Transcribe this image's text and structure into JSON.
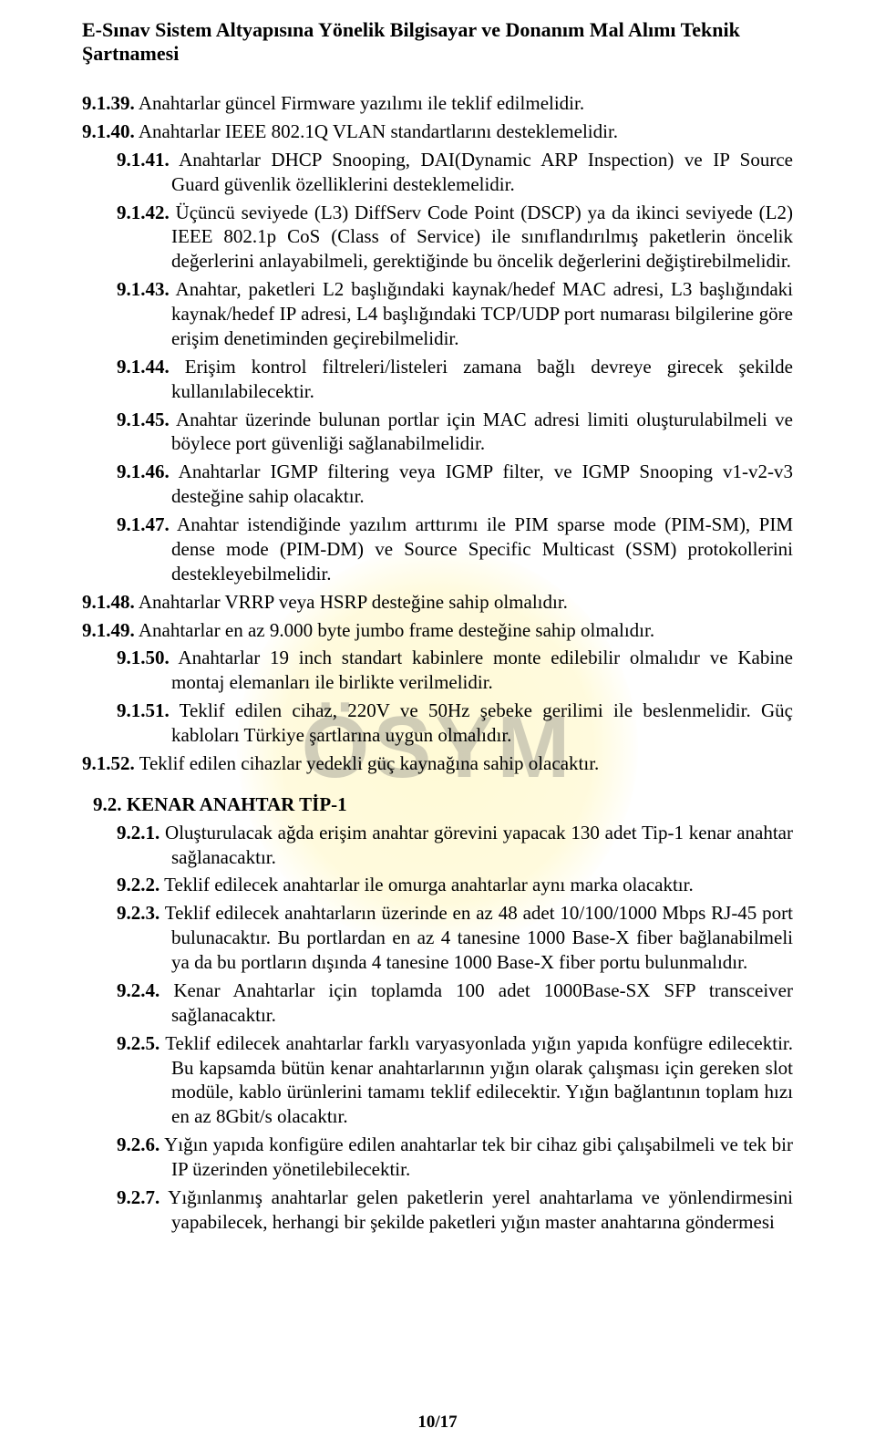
{
  "header": "E-Sınav Sistem Altyapısına Yönelik Bilgisayar ve Donanım Mal Alımı Teknik Şartnamesi",
  "watermark": "ÖSYM",
  "items": [
    {
      "num": "9.1.39.",
      "text": "Anahtarlar güncel Firmware yazılımı ile teklif edilmelidir.",
      "cls": "indent1 hang1"
    },
    {
      "num": "9.1.40.",
      "text": "Anahtarlar IEEE 802.1Q VLAN standartlarını desteklemelidir.",
      "cls": "indent1 hang1"
    },
    {
      "num": "9.1.41.",
      "text": "Anahtarlar DHCP Snooping, DAI(Dynamic ARP Inspection) ve IP Source Guard güvenlik özelliklerini desteklemelidir.",
      "cls": "indent1 hang1b justify"
    },
    {
      "num": "9.1.42.",
      "text": "Üçüncü seviyede (L3) DiffServ Code Point (DSCP) ya da ikinci seviyede (L2) IEEE 802.1p CoS (Class of Service) ile sınıflandırılmış paketlerin öncelik değerlerini anlayabilmeli, gerektiğinde bu öncelik değerlerini değiştirebilmelidir.",
      "cls": "indent1 hang1b justify"
    },
    {
      "num": "9.1.43.",
      "text": "Anahtar, paketleri L2 başlığındaki kaynak/hedef MAC adresi, L3 başlığındaki kaynak/hedef IP adresi, L4 başlığındaki TCP/UDP port numarası bilgilerine göre erişim denetiminden geçirebilmelidir.",
      "cls": "indent1 hang1b justify"
    },
    {
      "num": "9.1.44.",
      "text": "Erişim kontrol filtreleri/listeleri zamana bağlı devreye girecek şekilde kullanılabilecektir.",
      "cls": "indent1 hang1b justify"
    },
    {
      "num": "9.1.45.",
      "text": "Anahtar üzerinde bulunan portlar için MAC adresi limiti oluşturulabilmeli ve böylece port güvenliği sağlanabilmelidir.",
      "cls": "indent1 hang1b justify"
    },
    {
      "num": "9.1.46.",
      "text": "Anahtarlar IGMP filtering veya IGMP filter, ve IGMP Snooping v1-v2-v3 desteğine sahip olacaktır.",
      "cls": "indent1 hang1b justify"
    },
    {
      "num": "9.1.47.",
      "text": "Anahtar istendiğinde yazılım arttırımı ile PIM sparse mode (PIM-SM), PIM dense mode (PIM-DM) ve Source Specific Multicast (SSM) protokollerini destekleyebilmelidir.",
      "cls": "indent1 hang1b justify"
    },
    {
      "num": "9.1.48.",
      "text": "Anahtarlar VRRP veya HSRP desteğine sahip olmalıdır.",
      "cls": "indent1 hang1"
    },
    {
      "num": "9.1.49.",
      "text": "Anahtarlar en az 9.000 byte jumbo frame desteğine sahip olmalıdır.",
      "cls": "indent1 hang1"
    },
    {
      "num": "9.1.50.",
      "text": "Anahtarlar 19 inch standart kabinlere monte edilebilir olmalıdır ve Kabine montaj elemanları ile birlikte verilmelidir.",
      "cls": "indent1 hang1b justify"
    },
    {
      "num": "9.1.51.",
      "text": "Teklif edilen cihaz, 220V ve 50Hz şebeke gerilimi ile beslenmelidir. Güç kabloları Türkiye şartlarına uygun olmalıdır.",
      "cls": "indent1 hang1b justify"
    },
    {
      "num": "9.1.52.",
      "text": "Teklif edilen cihazlar yedekli güç kaynağına sahip olacaktır.",
      "cls": "indent1 hang1"
    }
  ],
  "section": {
    "num": "9.2.",
    "title": "KENAR ANAHTAR TİP-1"
  },
  "subitems": [
    {
      "num": "9.2.1.",
      "text": "Oluşturulacak ağda erişim anahtar görevini yapacak 130 adet Tip-1 kenar anahtar sağlanacaktır."
    },
    {
      "num": "9.2.2.",
      "text": "Teklif edilecek anahtarlar ile omurga anahtarlar aynı marka olacaktır."
    },
    {
      "num": "9.2.3.",
      "text": "Teklif edilecek anahtarların üzerinde en az 48 adet 10/100/1000 Mbps RJ-45 port bulunacaktır. Bu portlardan en az 4 tanesine 1000 Base-X fiber bağlanabilmeli ya da bu portların dışında 4 tanesine 1000 Base-X fiber portu bulunmalıdır."
    },
    {
      "num": "9.2.4.",
      "text": "Kenar Anahtarlar için toplamda 100 adet 1000Base-SX SFP transceiver sağlanacaktır."
    },
    {
      "num": "9.2.5.",
      "text": "Teklif edilecek anahtarlar farklı varyasyonlada yığın yapıda konfügre edilecektir. Bu kapsamda bütün kenar anahtarlarının yığın olarak çalışması için gereken slot modüle, kablo ürünlerini tamamı teklif edilecektir. Yığın bağlantının toplam hızı en az 8Gbit/s olacaktır."
    },
    {
      "num": "9.2.6.",
      "text": "Yığın yapıda konfigüre edilen anahtarlar tek bir cihaz gibi çalışabilmeli ve tek bir IP üzerinden yönetilebilecektir."
    },
    {
      "num": "9.2.7.",
      "text": "Yığınlanmış anahtarlar gelen paketlerin yerel anahtarlama ve yönlendirmesini yapabilecek, herhangi bir şekilde paketleri yığın master anahtarına göndermesi"
    }
  ],
  "footer": "10/17"
}
